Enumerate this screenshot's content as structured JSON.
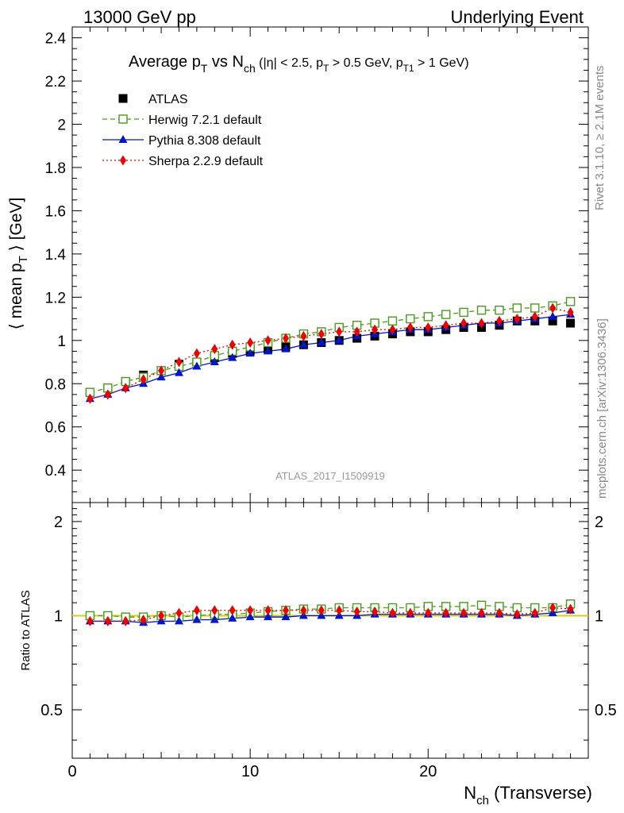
{
  "header": {
    "left": "13000 GeV pp",
    "right": "Underlying Event"
  },
  "plot_title": {
    "main": "Average p",
    "main_sub": "T",
    "main2": " vs N",
    "main2_sub": "ch",
    "cuts": " (|η| < 2.5, p",
    "cuts_sub1": "T",
    "cuts2": " > 0.5 GeV, p",
    "cuts_sub2": "T1",
    "cuts3": " > 1 GeV)"
  },
  "side_labels": {
    "rivet": "Rivet 3.1.10, ≥ 2.1M events",
    "mcplots": "mcplots.cern.ch [arXiv:1306.3436]"
  },
  "analysis_label": "ATLAS_2017_I1509919",
  "ylabel_main": {
    "pre": "⟨ mean p",
    "sub": "T",
    "post": " ⟩ [GeV]"
  },
  "ylabel_ratio": "Ratio to ATLAS",
  "xlabel": {
    "pre": "N",
    "sub": "ch",
    "post": " (Transverse)"
  },
  "legend": [
    {
      "label": "ATLAS",
      "color": "#000000",
      "marker": "square-filled"
    },
    {
      "label": "Herwig 7.2.1 default",
      "color": "#4a9a1e",
      "marker": "square-open",
      "line": "dashed"
    },
    {
      "label": "Pythia 8.308 default",
      "color": "#0015c8",
      "marker": "triangle",
      "line": "solid"
    },
    {
      "label": "Sherpa 2.2.9 default",
      "color": "#ee0000",
      "marker": "diamond",
      "line": "dotted"
    }
  ],
  "chart_data": [
    {
      "type": "scatter",
      "panel": "main",
      "xlim": [
        0,
        29
      ],
      "ylim": [
        0.25,
        2.45
      ],
      "yticks": [
        "0.4",
        "0.6",
        "0.8",
        "1",
        "1.2",
        "1.4",
        "1.6",
        "1.8",
        "2",
        "2.2",
        "2.4"
      ],
      "x": [
        1,
        2,
        3,
        4,
        5,
        6,
        7,
        8,
        9,
        10,
        11,
        12,
        13,
        14,
        15,
        16,
        17,
        18,
        19,
        20,
        21,
        22,
        23,
        24,
        25,
        26,
        27,
        28
      ],
      "series": [
        {
          "name": "ATLAS",
          "values": [
            0.76,
            0.78,
            0.81,
            0.84,
            0.86,
            0.89,
            0.9,
            0.92,
            0.94,
            0.95,
            0.96,
            0.97,
            0.98,
            0.99,
            1.0,
            1.01,
            1.02,
            1.03,
            1.04,
            1.04,
            1.05,
            1.06,
            1.06,
            1.07,
            1.09,
            1.09,
            1.09,
            1.08
          ]
        },
        {
          "name": "Herwig 7.2.1 default",
          "values": [
            0.76,
            0.78,
            0.81,
            0.83,
            0.86,
            0.88,
            0.9,
            0.93,
            0.95,
            0.97,
            0.99,
            1.01,
            1.03,
            1.04,
            1.06,
            1.07,
            1.08,
            1.09,
            1.1,
            1.11,
            1.12,
            1.13,
            1.14,
            1.14,
            1.15,
            1.15,
            1.16,
            1.18
          ]
        },
        {
          "name": "Pythia 8.308 default",
          "values": [
            0.73,
            0.75,
            0.78,
            0.8,
            0.83,
            0.85,
            0.88,
            0.9,
            0.92,
            0.94,
            0.95,
            0.96,
            0.98,
            0.99,
            1.0,
            1.02,
            1.03,
            1.04,
            1.05,
            1.05,
            1.06,
            1.07,
            1.08,
            1.08,
            1.09,
            1.1,
            1.11,
            1.12
          ]
        },
        {
          "name": "Sherpa 2.2.9 default",
          "values": [
            0.73,
            0.75,
            0.78,
            0.82,
            0.86,
            0.9,
            0.94,
            0.96,
            0.98,
            0.99,
            1.0,
            1.01,
            1.02,
            1.03,
            1.04,
            1.04,
            1.05,
            1.05,
            1.06,
            1.06,
            1.07,
            1.08,
            1.08,
            1.09,
            1.1,
            1.11,
            1.15,
            1.13
          ]
        }
      ]
    },
    {
      "type": "scatter",
      "panel": "ratio",
      "xlim": [
        0,
        29
      ],
      "ylim": [
        0.35,
        2.3
      ],
      "log_y": true,
      "yticks": [
        "0.5",
        "1",
        "2"
      ],
      "xticks": [
        "0",
        "10",
        "20"
      ],
      "x": [
        1,
        2,
        3,
        4,
        5,
        6,
        7,
        8,
        9,
        10,
        11,
        12,
        13,
        14,
        15,
        16,
        17,
        18,
        19,
        20,
        21,
        22,
        23,
        24,
        25,
        26,
        27,
        28
      ],
      "series": [
        {
          "name": "Herwig 7.2.1 default",
          "values": [
            1.0,
            1.0,
            0.99,
            0.99,
            1.0,
            0.99,
            1.0,
            1.01,
            1.01,
            1.02,
            1.03,
            1.04,
            1.05,
            1.05,
            1.06,
            1.06,
            1.06,
            1.06,
            1.06,
            1.07,
            1.07,
            1.07,
            1.08,
            1.07,
            1.06,
            1.06,
            1.06,
            1.09
          ]
        },
        {
          "name": "Pythia 8.308 default",
          "values": [
            0.96,
            0.96,
            0.96,
            0.95,
            0.96,
            0.96,
            0.97,
            0.97,
            0.98,
            0.99,
            0.99,
            0.99,
            1.0,
            1.0,
            1.0,
            1.0,
            1.01,
            1.01,
            1.01,
            1.01,
            1.01,
            1.01,
            1.01,
            1.01,
            1.0,
            1.01,
            1.02,
            1.04
          ]
        },
        {
          "name": "Sherpa 2.2.9 default",
          "values": [
            0.96,
            0.96,
            0.96,
            0.97,
            1.0,
            1.02,
            1.04,
            1.04,
            1.04,
            1.04,
            1.04,
            1.04,
            1.04,
            1.04,
            1.04,
            1.03,
            1.03,
            1.02,
            1.02,
            1.02,
            1.02,
            1.02,
            1.02,
            1.02,
            1.01,
            1.02,
            1.06,
            1.05
          ]
        }
      ]
    }
  ]
}
